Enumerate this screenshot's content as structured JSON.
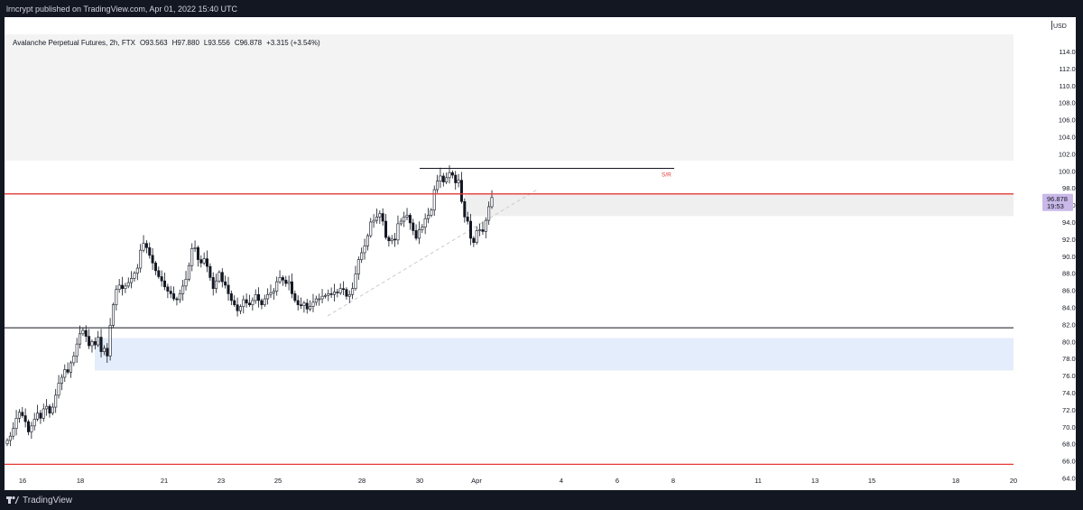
{
  "header": {
    "published_line": "lrncrypt published on TradingView.com, Apr 01, 2022 15:40 UTC"
  },
  "legend": {
    "symbol": "Avalanche Perpetual Futures, 2h, FTX",
    "open": "O93.563",
    "high": "H97.880",
    "low": "L93.556",
    "close": "C96.878",
    "change": "+3.315 (+3.54%)"
  },
  "price_scale": {
    "currency": "USD",
    "last_price": "96.878",
    "countdown": "19:53",
    "last_price_color": "#c9b8e8"
  },
  "footer": {
    "brand": "TradingView"
  },
  "chart_data": {
    "type": "candlestick",
    "x_ticks": [
      "16",
      "18",
      "21",
      "23",
      "25",
      "28",
      "30",
      "Apr",
      "4",
      "6",
      "8",
      "11",
      "13",
      "15",
      "18",
      "20"
    ],
    "y_ticks": [
      "64.000",
      "66.000",
      "68.000",
      "70.000",
      "72.000",
      "74.000",
      "76.000",
      "78.000",
      "80.000",
      "82.000",
      "84.000",
      "86.000",
      "88.000",
      "90.000",
      "92.000",
      "94.000",
      "96.000",
      "98.000",
      "100.000",
      "102.000",
      "104.000",
      "106.000",
      "108.000",
      "110.000",
      "112.000",
      "114.000"
    ],
    "ylim": [
      64,
      116
    ],
    "horizontal_levels": [
      {
        "price": 97.3,
        "color": "#e53935"
      },
      {
        "price": 81.6,
        "color": "#131722"
      },
      {
        "price": 65.6,
        "color": "#e53935"
      },
      {
        "price": 100.3,
        "color": "#131722",
        "label": "S/R"
      }
    ],
    "zones": [
      {
        "from": 101.2,
        "to": 116,
        "color": "#f3f3f3"
      },
      {
        "from": 94.7,
        "to": 97.3,
        "color": "#efefef"
      },
      {
        "from": 76.6,
        "to": 80.4,
        "color": "#e3edfb"
      }
    ],
    "close_series": [
      68.4,
      68.9,
      69.8,
      71.0,
      71.7,
      71.3,
      70.6,
      69.4,
      70.1,
      70.9,
      71.6,
      71.0,
      72.1,
      72.4,
      71.6,
      72.3,
      73.7,
      75.1,
      75.8,
      76.7,
      76.4,
      77.5,
      78.3,
      79.7,
      80.9,
      81.3,
      80.6,
      79.5,
      80.0,
      79.6,
      80.5,
      78.8,
      79.2,
      78.3,
      81.9,
      84.3,
      86.1,
      86.6,
      86.2,
      86.5,
      86.9,
      87.4,
      88.0,
      88.6,
      90.7,
      91.5,
      91.0,
      90.1,
      89.2,
      88.3,
      87.6,
      87.1,
      86.4,
      85.9,
      85.6,
      85.0,
      84.9,
      85.6,
      86.5,
      87.3,
      88.9,
      90.9,
      91.0,
      89.6,
      89.2,
      89.7,
      88.8,
      87.5,
      86.2,
      87.1,
      88.1,
      87.0,
      86.6,
      85.6,
      84.8,
      84.3,
      83.6,
      84.1,
      84.9,
      84.5,
      84.3,
      84.8,
      85.5,
      84.8,
      84.3,
      85.0,
      85.5,
      85.7,
      85.9,
      87.0,
      87.5,
      87.2,
      86.8,
      87.0,
      85.6,
      84.8,
      84.3,
      84.2,
      84.5,
      83.8,
      84.1,
      84.6,
      85.0,
      85.0,
      85.3,
      85.4,
      85.6,
      85.5,
      85.8,
      85.7,
      86.2,
      86.1,
      85.3,
      85.5,
      86.2,
      87.9,
      89.6,
      90.4,
      91.2,
      92.4,
      94.0,
      94.2,
      94.6,
      95.0,
      94.1,
      92.2,
      91.8,
      92.0,
      91.9,
      93.8,
      94.1,
      94.6,
      94.8,
      93.9,
      93.0,
      92.1,
      93.1,
      93.4,
      94.4,
      94.8,
      95.4,
      97.8,
      98.8,
      99.4,
      98.7,
      99.2,
      99.8,
      99.5,
      98.6,
      98.9,
      96.4,
      94.6,
      94.1,
      92.1,
      91.6,
      93.0,
      93.1,
      92.9,
      94.2,
      95.8,
      96.878
    ],
    "annotations": [
      {
        "type": "dashed-trendline",
        "from_price": 83.0,
        "to_price": 97.8,
        "color": "#cccccc"
      }
    ]
  }
}
